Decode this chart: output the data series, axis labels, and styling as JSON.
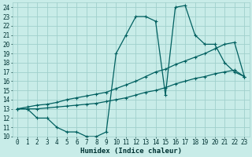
{
  "xlabel": "Humidex (Indice chaleur)",
  "background_color": "#c8ece8",
  "grid_color": "#a0d0cc",
  "line_color": "#006060",
  "xlim": [
    -0.5,
    23.5
  ],
  "ylim": [
    10,
    24.5
  ],
  "xticks": [
    0,
    1,
    2,
    3,
    4,
    5,
    6,
    7,
    8,
    9,
    10,
    11,
    12,
    13,
    14,
    15,
    16,
    17,
    18,
    19,
    20,
    21,
    22,
    23
  ],
  "yticks": [
    10,
    11,
    12,
    13,
    14,
    15,
    16,
    17,
    18,
    19,
    20,
    21,
    22,
    23,
    24
  ],
  "line1_x": [
    0,
    1,
    2,
    3,
    4,
    5,
    6,
    7,
    8,
    9,
    10,
    11,
    12,
    13,
    14,
    15,
    16,
    17,
    18,
    19,
    20,
    21,
    22,
    23
  ],
  "line1_y": [
    13,
    13,
    12,
    12,
    11,
    10.5,
    10.5,
    10,
    10,
    10.5,
    19,
    21,
    23,
    23,
    22.5,
    14.5,
    24,
    24.2,
    21,
    20,
    20,
    18,
    17,
    16.5
  ],
  "line2_x": [
    0,
    1,
    2,
    3,
    4,
    5,
    6,
    7,
    8,
    9,
    10,
    11,
    12,
    13,
    14,
    15,
    16,
    17,
    18,
    19,
    20,
    21,
    22,
    23
  ],
  "line2_y": [
    13,
    13.2,
    13.4,
    13.5,
    13.7,
    14,
    14.2,
    14.4,
    14.6,
    14.8,
    15.2,
    15.6,
    16,
    16.5,
    17,
    17.3,
    17.8,
    18.2,
    18.6,
    19,
    19.5,
    20,
    20.2,
    16.5
  ],
  "line3_x": [
    0,
    1,
    2,
    3,
    4,
    5,
    6,
    7,
    8,
    9,
    10,
    11,
    12,
    13,
    14,
    15,
    16,
    17,
    18,
    19,
    20,
    21,
    22,
    23
  ],
  "line3_y": [
    13,
    13,
    13,
    13.1,
    13.2,
    13.3,
    13.4,
    13.5,
    13.6,
    13.8,
    14,
    14.2,
    14.5,
    14.8,
    15,
    15.3,
    15.7,
    16,
    16.3,
    16.5,
    16.8,
    17,
    17.2,
    16.5
  ],
  "tick_fontsize": 5.5,
  "label_fontsize": 6.5
}
